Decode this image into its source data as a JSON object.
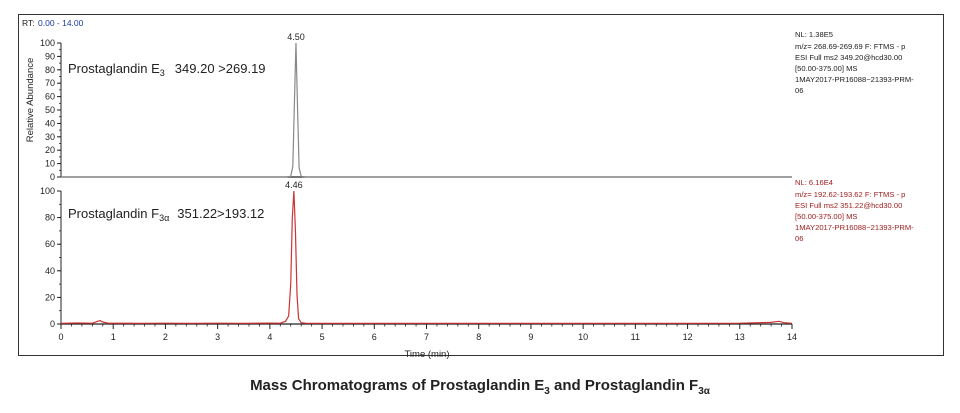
{
  "header": {
    "rt_prefix": "RT:",
    "rt_range": "0.00 - 14.00"
  },
  "caption": {
    "part1": "Mass Chromatograms of Prostaglandin E",
    "sub1": "3",
    "part2": " and Prostaglandin F",
    "sub2": "3α"
  },
  "colors": {
    "trace_top": "#888888",
    "trace_bottom": "#cc3333",
    "info_bottom": "#a02020",
    "axis": "#222222",
    "rt_range": "#1a3aa8"
  },
  "chart_data": [
    {
      "type": "line",
      "id": "top",
      "ylabel": "Relative Abundance",
      "xlim": [
        0,
        14
      ],
      "ylim": [
        0,
        100
      ],
      "yticks": [
        0,
        10,
        20,
        30,
        40,
        50,
        60,
        70,
        80,
        90,
        100
      ],
      "peak_label": "4.50",
      "label_name": "Prostaglandin E",
      "label_sub": "3",
      "label_transition": "349.20 >269.19",
      "info": [
        "NL: 1.38E5",
        "m/z= 268.69-269.69 F: FTMS - p",
        "ESI Full ms2 349.20@hcd30.00",
        "[50.00-375.00]  MS",
        "1MAY2017-PR16088~21393-PRM-",
        "06"
      ],
      "series": [
        {
          "x": [
            0,
            0.5,
            1,
            1.5,
            2,
            2.5,
            3,
            3.5,
            4,
            4.3,
            4.4,
            4.44,
            4.47,
            4.5,
            4.53,
            4.56,
            4.6,
            4.7,
            5,
            6,
            7,
            8,
            9,
            10,
            11,
            12,
            13,
            14
          ],
          "y": [
            0,
            0,
            0,
            0,
            0,
            0,
            0,
            0,
            0,
            0,
            0.5,
            8,
            55,
            100,
            52,
            7,
            0.5,
            0,
            0,
            0,
            0,
            0,
            0,
            0,
            0,
            0,
            0,
            0
          ]
        }
      ]
    },
    {
      "type": "line",
      "id": "bottom",
      "xlabel": "Time (min)",
      "xlim": [
        0,
        14
      ],
      "ylim": [
        0,
        100
      ],
      "yticks": [
        0,
        20,
        40,
        60,
        80,
        100
      ],
      "xticks": [
        0,
        1,
        2,
        3,
        4,
        5,
        6,
        7,
        8,
        9,
        10,
        11,
        12,
        13,
        14
      ],
      "peak_label": "4.46",
      "label_name": "Prostaglandin F",
      "label_sub": "3α",
      "label_transition": "351.22>193.12",
      "info": [
        "NL: 6.16E4",
        "m/z= 192.62-193.62 F: FTMS - p",
        "ESI Full ms2 351.22@hcd30.00",
        "[50.00-375.00]  MS",
        "1MAY2017-PR16088~21393-PRM-",
        "06"
      ],
      "series": [
        {
          "x": [
            0,
            0.3,
            0.6,
            0.7,
            0.75,
            0.8,
            0.9,
            1.5,
            2,
            2.5,
            3,
            3.5,
            4,
            4.2,
            4.3,
            4.36,
            4.4,
            4.43,
            4.46,
            4.49,
            4.52,
            4.55,
            4.6,
            4.7,
            5,
            6,
            7,
            8,
            9,
            10,
            11,
            12,
            13,
            13.6,
            13.75,
            13.85,
            14
          ],
          "y": [
            0.5,
            0.8,
            0.6,
            2,
            2.5,
            1.5,
            0.6,
            0.5,
            0.6,
            0.5,
            0.6,
            0.5,
            0.7,
            0.6,
            2,
            6,
            30,
            80,
            100,
            70,
            22,
            4,
            1,
            0.5,
            0.5,
            0.5,
            0.5,
            0.5,
            0.5,
            0.5,
            0.5,
            0.5,
            0.6,
            1.2,
            2,
            1,
            0.5
          ]
        }
      ]
    }
  ]
}
